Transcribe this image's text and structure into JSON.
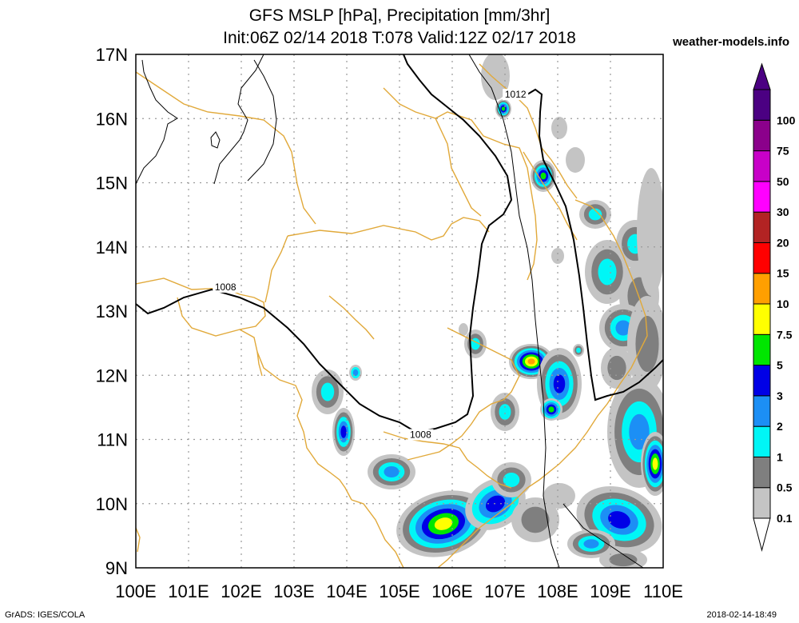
{
  "title": {
    "line1": "GFS MSLP [hPa], Precipitation [mm/3hr]",
    "line2": "Init:06Z 02/14 2018 T:078 Valid:12Z 02/17 2018"
  },
  "site": "weather-models.info",
  "footer": {
    "left": "GrADS: IGES/COLA",
    "right": "2018-02-14-18:49"
  },
  "map": {
    "lon_range": [
      100,
      110
    ],
    "lat_range": [
      9,
      17
    ],
    "lon_labels": [
      "100E",
      "101E",
      "102E",
      "103E",
      "104E",
      "105E",
      "106E",
      "107E",
      "108E",
      "109E",
      "110E"
    ],
    "lat_labels": [
      "9N",
      "10N",
      "11N",
      "12N",
      "13N",
      "14N",
      "15N",
      "16N",
      "17N"
    ],
    "isobar_labels": [
      {
        "text": "1012",
        "lon": 107.2,
        "lat": 16.35
      },
      {
        "text": "1008",
        "lon": 101.7,
        "lat": 13.35
      },
      {
        "text": "1008",
        "lon": 105.4,
        "lat": 11.05
      }
    ],
    "colors": {
      "coast": "#e1a93a",
      "isobar": "#000000",
      "grid": "#9a9a9a"
    }
  },
  "colorbar": {
    "labels": [
      "0.1",
      "0.5",
      "1",
      "2",
      "3",
      "5",
      "7.5",
      "10",
      "15",
      "20",
      "30",
      "50",
      "75",
      "100"
    ],
    "colors": [
      "#c4c4c4",
      "#7f7f7f",
      "#00f6f6",
      "#1c8ff5",
      "#0000e6",
      "#00e600",
      "#ffff00",
      "#ff9f00",
      "#ff0000",
      "#b22323",
      "#ff00ff",
      "#c800c8",
      "#8b008b",
      "#4b0082"
    ]
  }
}
